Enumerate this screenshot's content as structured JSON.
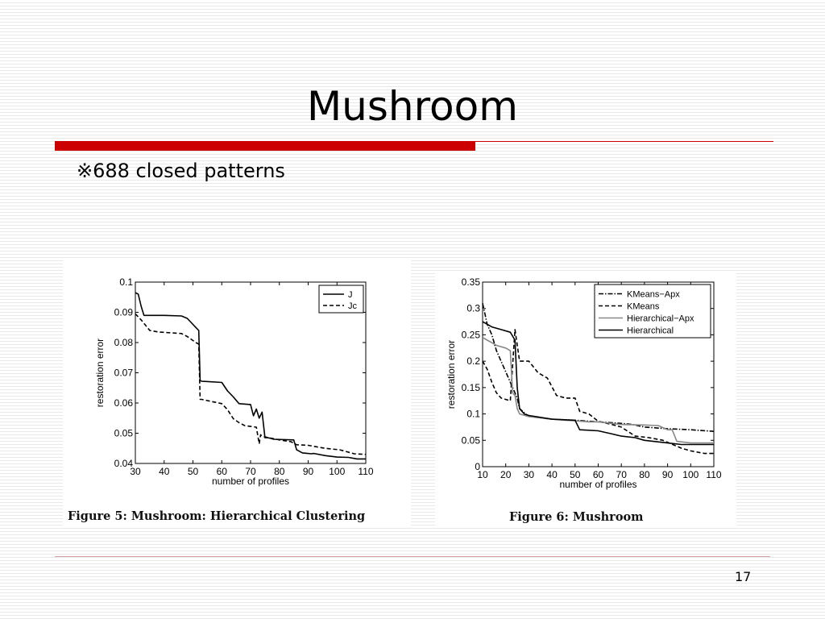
{
  "slide": {
    "title": "Mushroom",
    "subtitle": "※688 closed patterns",
    "page_number": "17"
  },
  "colors": {
    "accent_red": "#cc0000"
  },
  "chart_data": [
    {
      "type": "line",
      "caption": "Figure 5: Mushroom: Hierarchical Clustering",
      "xlabel": "number of profiles",
      "ylabel": "restoration error",
      "xlim": [
        30,
        110
      ],
      "ylim": [
        0.04,
        0.1
      ],
      "xticks": [
        30,
        40,
        50,
        60,
        70,
        80,
        90,
        100,
        110
      ],
      "yticks": [
        0.04,
        0.05,
        0.06,
        0.07,
        0.08,
        0.09,
        0.1
      ],
      "ytick_labels": [
        "0.04",
        "0.05",
        "0.06",
        "0.07",
        "0.08",
        "0.09",
        "0.1"
      ],
      "legend_position": "top-right",
      "series": [
        {
          "name": "J",
          "dash": "solid",
          "color": "#000000",
          "x": [
            30,
            31,
            32,
            33,
            40,
            46,
            48,
            50,
            51,
            52,
            52.5,
            53,
            60,
            62,
            64,
            66,
            70,
            71,
            72,
            73,
            74,
            75,
            76,
            77,
            78,
            85,
            86,
            88,
            91,
            92,
            96,
            100,
            104,
            107,
            110
          ],
          "y": [
            0.0965,
            0.096,
            0.092,
            0.089,
            0.089,
            0.0888,
            0.088,
            0.086,
            0.085,
            0.084,
            0.0675,
            0.0672,
            0.0668,
            0.064,
            0.062,
            0.0598,
            0.0595,
            0.0558,
            0.058,
            0.055,
            0.057,
            0.0485,
            0.0485,
            0.0483,
            0.048,
            0.0478,
            0.0445,
            0.0435,
            0.0432,
            0.0433,
            0.0426,
            0.0421,
            0.042,
            0.0415,
            0.0415
          ]
        },
        {
          "name": "Jc",
          "dash": "dashed",
          "color": "#000000",
          "x": [
            30,
            32,
            35,
            38,
            46,
            48,
            51,
            52,
            52.5,
            53,
            60,
            62,
            64,
            66,
            68,
            72,
            73,
            73.5,
            74,
            80,
            84,
            86,
            90,
            96,
            101,
            106,
            110
          ],
          "y": [
            0.0895,
            0.0875,
            0.084,
            0.0835,
            0.083,
            0.082,
            0.08,
            0.0795,
            0.0612,
            0.0612,
            0.0598,
            0.0578,
            0.0548,
            0.0535,
            0.0525,
            0.052,
            0.0465,
            0.0495,
            0.049,
            0.0478,
            0.0472,
            0.0462,
            0.046,
            0.045,
            0.0445,
            0.0432,
            0.043
          ]
        }
      ]
    },
    {
      "type": "line",
      "caption": "Figure 6: Mushroom",
      "xlabel": "number of profiles",
      "ylabel": "restoration error",
      "xlim": [
        10,
        110
      ],
      "ylim": [
        0,
        0.35
      ],
      "xticks": [
        10,
        20,
        30,
        40,
        50,
        60,
        70,
        80,
        90,
        100,
        110
      ],
      "yticks": [
        0,
        0.05,
        0.1,
        0.15,
        0.2,
        0.25,
        0.3,
        0.35
      ],
      "ytick_labels": [
        "0",
        "0.05",
        "0.1",
        "0.15",
        "0.2",
        "0.25",
        "0.3",
        "0.35"
      ],
      "legend_position": "top-right",
      "series": [
        {
          "name": "KMeans−Apx",
          "dash": "dashdot",
          "color": "#000000",
          "x": [
            10,
            11,
            12,
            14,
            16,
            20,
            22,
            24,
            25,
            26,
            30,
            40,
            50,
            60,
            70,
            75,
            80,
            90,
            100,
            110
          ],
          "y": [
            0.31,
            0.29,
            0.27,
            0.25,
            0.22,
            0.18,
            0.16,
            0.14,
            0.13,
            0.11,
            0.095,
            0.09,
            0.088,
            0.085,
            0.082,
            0.08,
            0.075,
            0.072,
            0.07,
            0.067
          ]
        },
        {
          "name": "KMeans",
          "dash": "dashed",
          "color": "#000000",
          "x": [
            10,
            12,
            14,
            16,
            18,
            22,
            24,
            26,
            28,
            30,
            34,
            38,
            42,
            46,
            50,
            52,
            56,
            60,
            66,
            70,
            76,
            82,
            88,
            96,
            100,
            106,
            110
          ],
          "y": [
            0.2,
            0.185,
            0.16,
            0.14,
            0.13,
            0.125,
            0.26,
            0.2,
            0.2,
            0.2,
            0.178,
            0.168,
            0.135,
            0.13,
            0.13,
            0.105,
            0.1,
            0.086,
            0.08,
            0.075,
            0.058,
            0.055,
            0.05,
            0.035,
            0.03,
            0.025,
            0.025
          ]
        },
        {
          "name": "Hierarchical−Apx",
          "dash": "solid",
          "color": "#888888",
          "x": [
            10,
            12,
            14,
            16,
            20,
            22,
            23,
            24,
            25,
            26,
            30,
            40,
            46,
            50,
            56,
            60,
            70,
            80,
            86,
            90,
            92,
            94,
            100,
            110
          ],
          "y": [
            0.245,
            0.24,
            0.235,
            0.23,
            0.225,
            0.22,
            0.14,
            0.135,
            0.11,
            0.1,
            0.095,
            0.09,
            0.088,
            0.087,
            0.085,
            0.085,
            0.08,
            0.079,
            0.078,
            0.07,
            0.07,
            0.048,
            0.045,
            0.045
          ]
        },
        {
          "name": "Hierarchical",
          "dash": "solid",
          "color": "#000000",
          "x": [
            10,
            12,
            14,
            18,
            22,
            24,
            25,
            26,
            28,
            30,
            40,
            50,
            52,
            60,
            66,
            70,
            76,
            80,
            90,
            96,
            100,
            110
          ],
          "y": [
            0.275,
            0.27,
            0.265,
            0.26,
            0.255,
            0.24,
            0.15,
            0.11,
            0.1,
            0.097,
            0.09,
            0.088,
            0.07,
            0.068,
            0.062,
            0.058,
            0.055,
            0.05,
            0.045,
            0.042,
            0.042,
            0.042
          ]
        }
      ]
    }
  ]
}
